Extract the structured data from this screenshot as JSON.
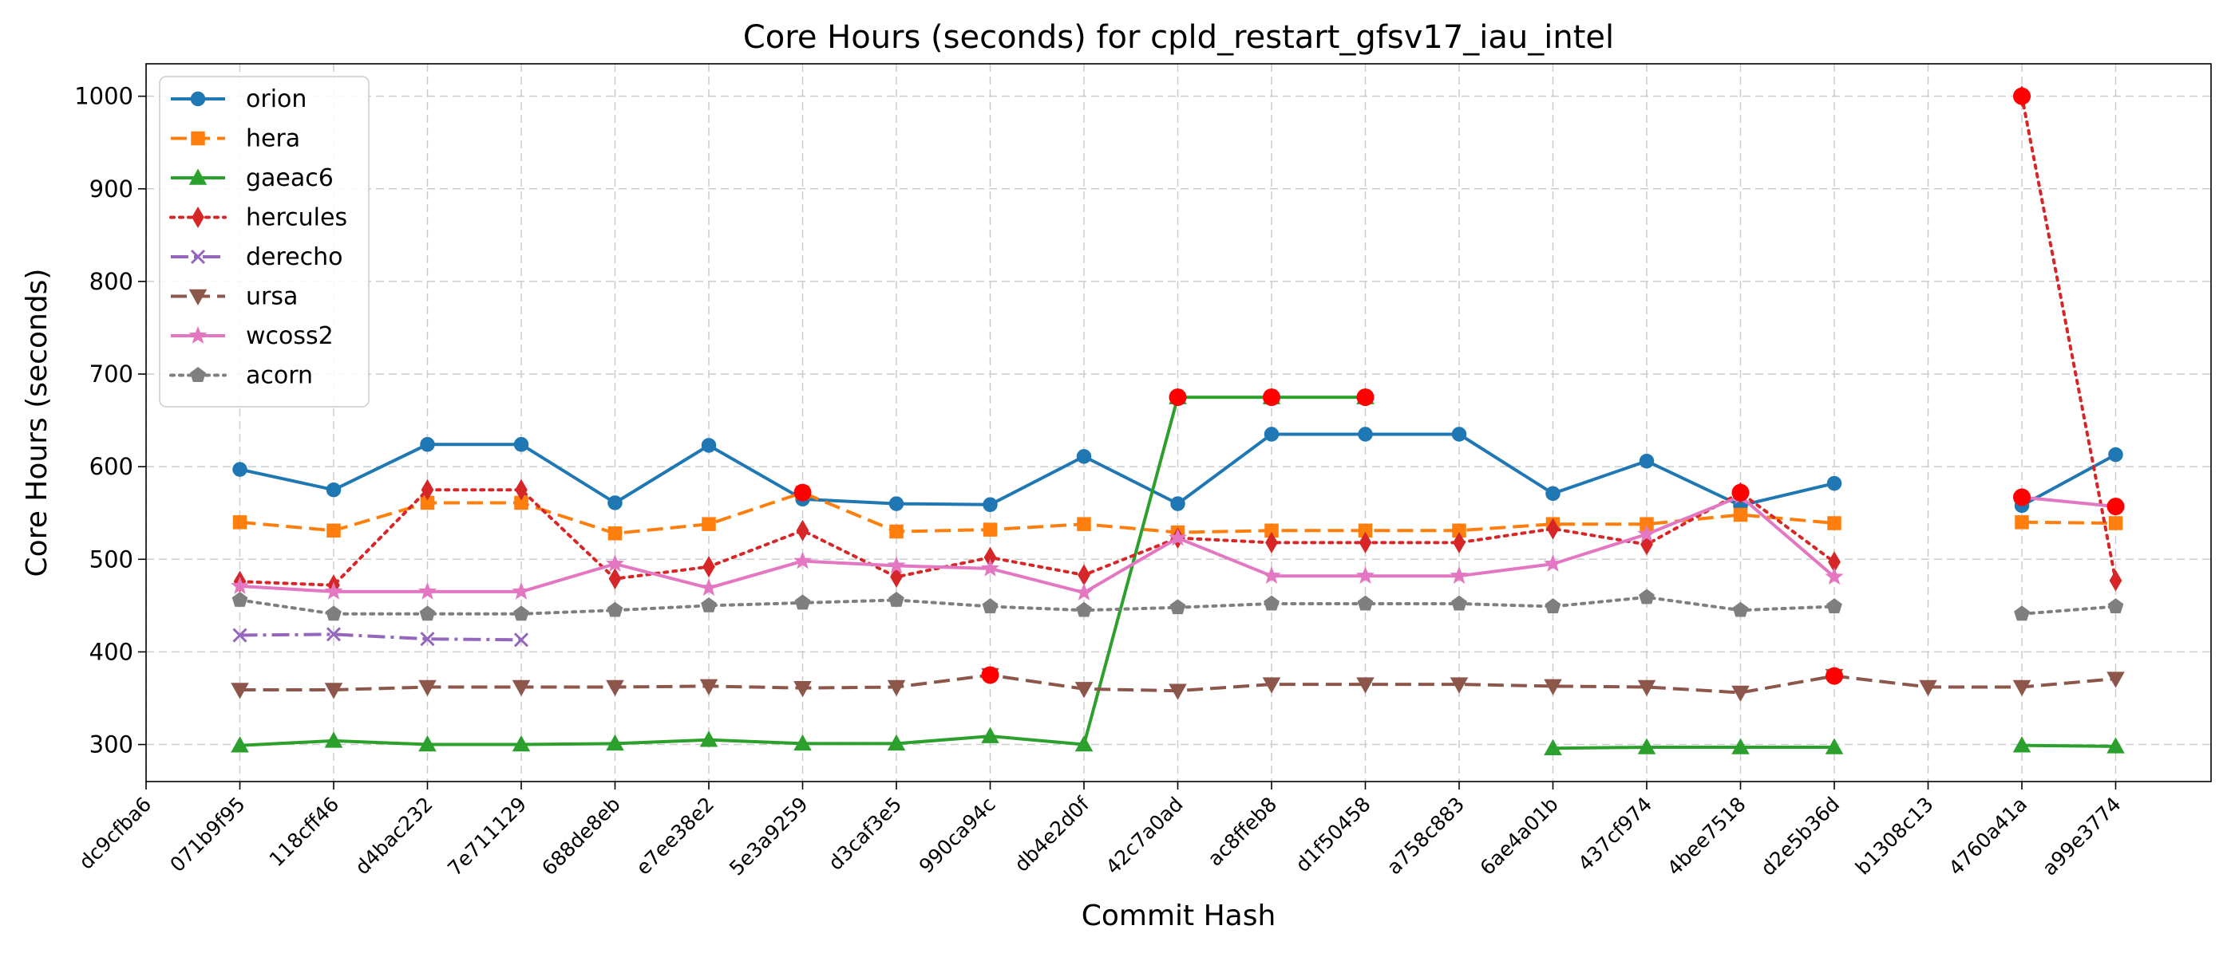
{
  "chart_data": {
    "type": "line",
    "title": "Core Hours (seconds) for cpld_restart_gfsv17_iau_intel",
    "xlabel": "Commit Hash",
    "ylabel": "Core Hours (seconds)",
    "ylim": [
      260,
      1035
    ],
    "yticks": [
      300,
      400,
      500,
      600,
      700,
      800,
      900,
      1000
    ],
    "grid": true,
    "legend_position": "top-left",
    "categories": [
      "dc9cfba6",
      "071b9f95",
      "118cff46",
      "d4bac232",
      "7e711129",
      "688de8eb",
      "e7ee38e2",
      "5e3a9259",
      "d3caf3e5",
      "990ca94c",
      "db4e2d0f",
      "42c7a0ad",
      "ac8ffeb8",
      "d1f50458",
      "a758c883",
      "6ae4a01b",
      "437cf974",
      "4bee7518",
      "d2e5b36d",
      "b1308c13",
      "4760a41a",
      "a99e3774"
    ],
    "series": [
      {
        "name": "orion",
        "color": "#1f77b4",
        "marker": "circle",
        "dash": "solid",
        "values": [
          null,
          597,
          575,
          624,
          624,
          561,
          623,
          565,
          560,
          559,
          611,
          560,
          635,
          635,
          635,
          571,
          606,
          558,
          582,
          null,
          558,
          613
        ]
      },
      {
        "name": "hera",
        "color": "#ff7f0e",
        "marker": "square",
        "dash": "dashed",
        "values": [
          null,
          540,
          531,
          561,
          561,
          528,
          538,
          572,
          530,
          532,
          538,
          529,
          531,
          531,
          531,
          538,
          538,
          548,
          539,
          null,
          540,
          539
        ]
      },
      {
        "name": "gaeac6",
        "color": "#2ca02c",
        "marker": "triangle-up",
        "dash": "solid",
        "values": [
          null,
          299,
          304,
          300,
          300,
          301,
          305,
          301,
          301,
          309,
          300,
          675,
          675,
          675,
          null,
          296,
          297,
          297,
          297,
          null,
          299,
          298
        ]
      },
      {
        "name": "hercules",
        "color": "#d62728",
        "marker": "diamond",
        "dash": "dotted",
        "values": [
          null,
          476,
          472,
          575,
          575,
          479,
          492,
          531,
          481,
          502,
          483,
          523,
          518,
          518,
          518,
          533,
          516,
          572,
          497,
          null,
          1000,
          477
        ]
      },
      {
        "name": "derecho",
        "color": "#9467bd",
        "marker": "x",
        "dash": "dashdot",
        "values": [
          null,
          418,
          419,
          414,
          413,
          null,
          null,
          null,
          null,
          null,
          null,
          null,
          null,
          null,
          null,
          null,
          null,
          null,
          null,
          null,
          null,
          null
        ]
      },
      {
        "name": "ursa",
        "color": "#8c564b",
        "marker": "triangle-down",
        "dash": "dashed",
        "values": [
          null,
          359,
          359,
          362,
          362,
          362,
          363,
          361,
          362,
          375,
          360,
          358,
          365,
          365,
          365,
          363,
          362,
          356,
          374,
          362,
          362,
          371
        ]
      },
      {
        "name": "wcoss2",
        "color": "#e377c2",
        "marker": "star",
        "dash": "solid",
        "values": [
          null,
          471,
          465,
          465,
          465,
          495,
          469,
          498,
          493,
          490,
          464,
          523,
          482,
          482,
          482,
          495,
          527,
          568,
          481,
          null,
          567,
          557
        ]
      },
      {
        "name": "acorn",
        "color": "#7f7f7f",
        "marker": "pentagon",
        "dash": "dotted",
        "values": [
          null,
          456,
          441,
          441,
          441,
          445,
          450,
          453,
          456,
          449,
          445,
          448,
          452,
          452,
          452,
          449,
          459,
          445,
          449,
          null,
          441,
          449
        ]
      }
    ],
    "highlight_color": "#ff0000",
    "highlighted_points": [
      {
        "category": "5e3a9259",
        "value": 572
      },
      {
        "category": "990ca94c",
        "value": 375
      },
      {
        "category": "42c7a0ad",
        "value": 675
      },
      {
        "category": "ac8ffeb8",
        "value": 675
      },
      {
        "category": "d1f50458",
        "value": 675
      },
      {
        "category": "4bee7518",
        "value": 572
      },
      {
        "category": "d2e5b36d",
        "value": 374
      },
      {
        "category": "4760a41a",
        "value": 1000
      },
      {
        "category": "4760a41a",
        "value": 567
      },
      {
        "category": "a99e3774",
        "value": 557
      }
    ]
  }
}
